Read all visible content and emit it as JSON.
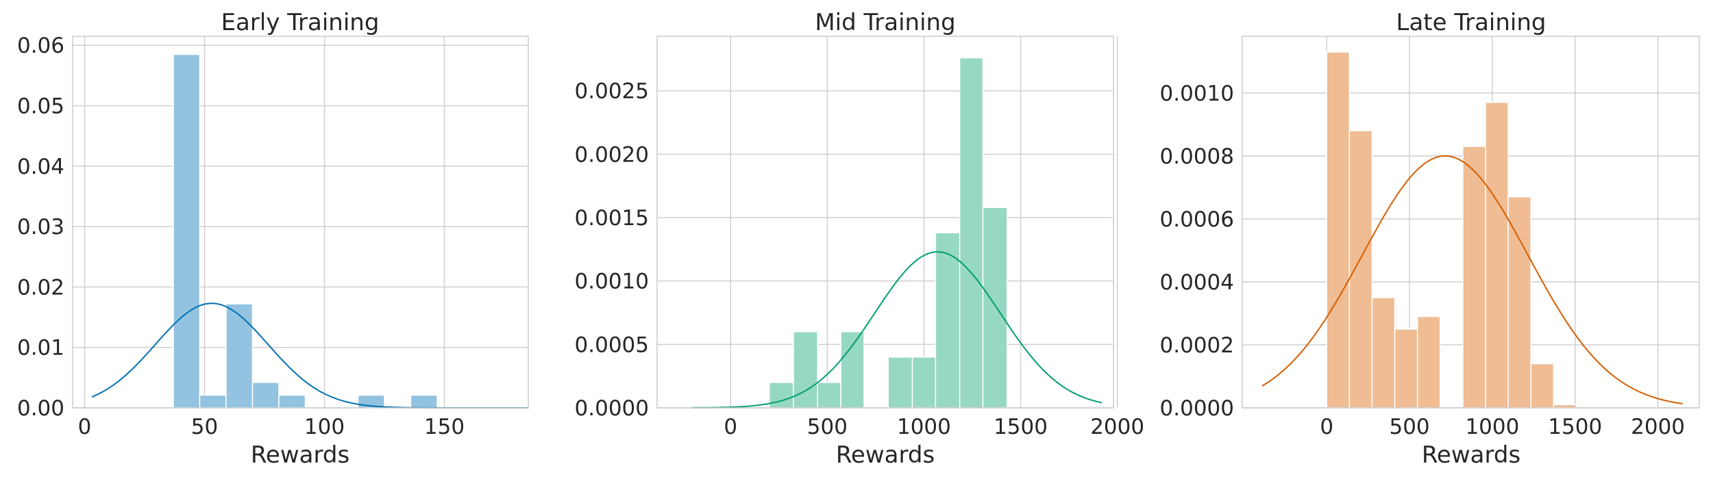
{
  "chart_data": [
    {
      "type": "histogram",
      "title": "Early Training",
      "xlabel": "Rewards",
      "ylabel": "",
      "xlim": [
        -5,
        185
      ],
      "ylim": [
        0,
        0.0615
      ],
      "xticks": [
        0,
        50,
        100,
        150
      ],
      "yticks": [
        0.0,
        0.01,
        0.02,
        0.03,
        0.04,
        0.05,
        0.06
      ],
      "ytick_labels": [
        "0.00",
        "0.01",
        "0.02",
        "0.03",
        "0.04",
        "0.05",
        "0.06"
      ],
      "grid": true,
      "bar_color": "#92c3e0",
      "kde_color": "#0072b2",
      "bins": [
        {
          "x0": 37,
          "x1": 48,
          "density": 0.0585
        },
        {
          "x0": 48,
          "x1": 59,
          "density": 0.0021
        },
        {
          "x0": 59,
          "x1": 70,
          "density": 0.0172
        },
        {
          "x0": 70,
          "x1": 81,
          "density": 0.0042
        },
        {
          "x0": 81,
          "x1": 92,
          "density": 0.0021
        },
        {
          "x0": 92,
          "x1": 103,
          "density": 0
        },
        {
          "x0": 103,
          "x1": 114,
          "density": 0
        },
        {
          "x0": 114,
          "x1": 125,
          "density": 0.0021
        },
        {
          "x0": 125,
          "x1": 136,
          "density": 0
        },
        {
          "x0": 136,
          "x1": 147,
          "density": 0.0021
        }
      ],
      "kde": {
        "mean": 53,
        "sd": 23.5,
        "peak": 0.0173,
        "x_range": [
          3,
          185
        ]
      }
    },
    {
      "type": "histogram",
      "title": "Mid Training",
      "xlabel": "Rewards",
      "ylabel": "",
      "xlim": [
        -380,
        1980
      ],
      "ylim": [
        0,
        0.00293
      ],
      "xticks": [
        0,
        500,
        1000,
        1500,
        2000
      ],
      "yticks": [
        0.0,
        0.0005,
        0.001,
        0.0015,
        0.002,
        0.0025
      ],
      "ytick_labels": [
        "0.0000",
        "0.0005",
        "0.0010",
        "0.0015",
        "0.0020",
        "0.0025"
      ],
      "grid": true,
      "bar_color": "#97d8c2",
      "kde_color": "#009e73",
      "bins": [
        {
          "x0": 200,
          "x1": 325,
          "density": 0.0002
        },
        {
          "x0": 325,
          "x1": 450,
          "density": 0.0006
        },
        {
          "x0": 450,
          "x1": 570,
          "density": 0.0002
        },
        {
          "x0": 570,
          "x1": 690,
          "density": 0.0006
        },
        {
          "x0": 690,
          "x1": 815,
          "density": 0
        },
        {
          "x0": 815,
          "x1": 940,
          "density": 0.0004
        },
        {
          "x0": 940,
          "x1": 1060,
          "density": 0.0004
        },
        {
          "x0": 1060,
          "x1": 1185,
          "density": 0.00138
        },
        {
          "x0": 1185,
          "x1": 1305,
          "density": 0.00276
        },
        {
          "x0": 1305,
          "x1": 1430,
          "density": 0.00158
        }
      ],
      "kde": {
        "mean": 1070,
        "sd": 325,
        "peak": 0.00123,
        "x_range": [
          -200,
          1920
        ]
      }
    },
    {
      "type": "histogram",
      "title": "Late Training",
      "xlabel": "Rewards",
      "ylabel": "",
      "xlim": [
        -510,
        2250
      ],
      "ylim": [
        0,
        0.00118
      ],
      "xticks": [
        0,
        500,
        1000,
        1500,
        2000
      ],
      "yticks": [
        0.0,
        0.0002,
        0.0004,
        0.0006,
        0.0008,
        0.001
      ],
      "ytick_labels": [
        "0.0000",
        "0.0002",
        "0.0004",
        "0.0006",
        "0.0008",
        "0.0010"
      ],
      "grid": true,
      "bar_color": "#f0bc93",
      "kde_color": "#d55e00",
      "bins": [
        {
          "x0": 0,
          "x1": 137,
          "density": 0.00113
        },
        {
          "x0": 137,
          "x1": 274,
          "density": 0.00088
        },
        {
          "x0": 274,
          "x1": 411,
          "density": 0.00035
        },
        {
          "x0": 411,
          "x1": 548,
          "density": 0.00025
        },
        {
          "x0": 548,
          "x1": 685,
          "density": 0.00029
        },
        {
          "x0": 685,
          "x1": 822,
          "density": 0
        },
        {
          "x0": 822,
          "x1": 959,
          "density": 0.00083
        },
        {
          "x0": 959,
          "x1": 1096,
          "density": 0.00097
        },
        {
          "x0": 1096,
          "x1": 1233,
          "density": 0.00067
        },
        {
          "x0": 1233,
          "x1": 1370,
          "density": 0.00014
        },
        {
          "x0": 1370,
          "x1": 1507,
          "density": 1e-05
        }
      ],
      "kde": {
        "mean": 715,
        "sd": 500,
        "peak": 0.0008,
        "x_range": [
          -390,
          2150
        ]
      }
    }
  ]
}
